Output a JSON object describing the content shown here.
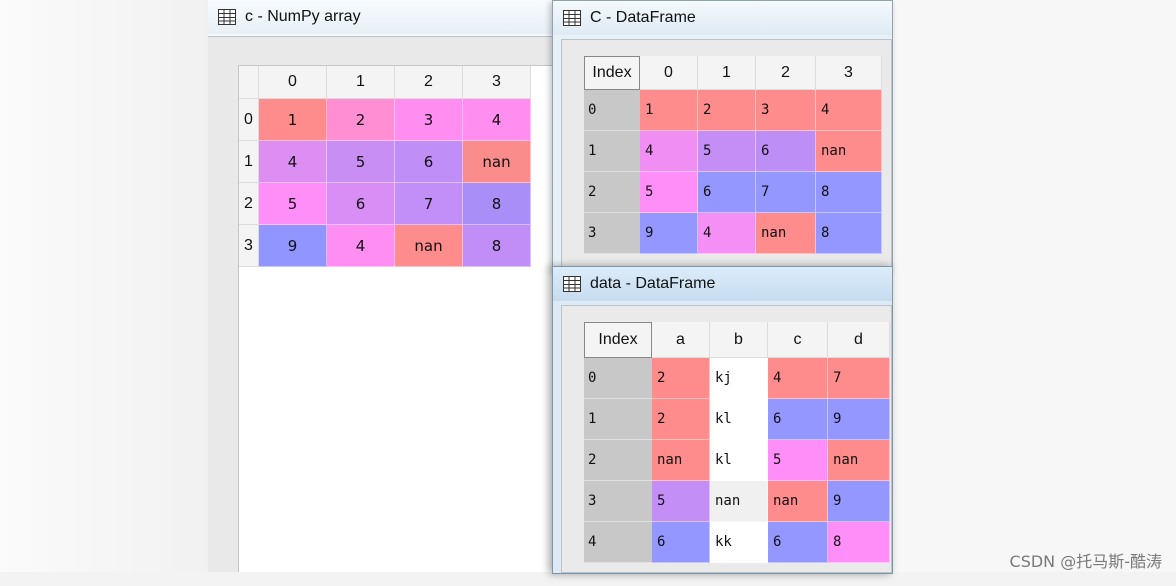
{
  "numpy_window": {
    "title": "c - NumPy array",
    "icon": "table-icon",
    "columns": [
      "0",
      "1",
      "2",
      "3"
    ],
    "row_labels": [
      "0",
      "1",
      "2",
      "3"
    ],
    "rows": [
      [
        "1",
        "2",
        "3",
        "4"
      ],
      [
        "4",
        "5",
        "6",
        "nan"
      ],
      [
        "5",
        "6",
        "7",
        "8"
      ],
      [
        "9",
        "4",
        "nan",
        "8"
      ]
    ],
    "colors": [
      [
        "#ff8c8c",
        "#ff8ed3",
        "#ff8ef0",
        "#ff8ef0"
      ],
      [
        "#dd8ef2",
        "#c98ef3",
        "#bf8ef6",
        "#fb8c8c"
      ],
      [
        "#ff8ef8",
        "#d88ef5",
        "#c28ef7",
        "#aa8ef8"
      ],
      [
        "#9195ff",
        "#ff8ef2",
        "#ff8c8c",
        "#c18ef7"
      ]
    ]
  },
  "c_window": {
    "title": "C - DataFrame",
    "icon": "table-icon",
    "index_header": "Index",
    "columns": [
      "0",
      "1",
      "2",
      "3"
    ],
    "index": [
      "0",
      "1",
      "2",
      "3"
    ],
    "rows": [
      [
        "1",
        "2",
        "3",
        "4"
      ],
      [
        "4",
        "5",
        "6",
        "nan"
      ],
      [
        "5",
        "6",
        "7",
        "8"
      ],
      [
        "9",
        "4",
        "nan",
        "8"
      ]
    ],
    "colors": [
      [
        "#ff8c8c",
        "#ff8c8c",
        "#ff8c8c",
        "#ff8c8c"
      ],
      [
        "#f08ef3",
        "#c58ef7",
        "#bd8ef5",
        "#ff8c8c"
      ],
      [
        "#ff8ef8",
        "#9497ff",
        "#9497ff",
        "#9497ff"
      ],
      [
        "#9497ff",
        "#f58ef5",
        "#ff8c8c",
        "#9497ff"
      ]
    ]
  },
  "data_window": {
    "title": "data - DataFrame",
    "icon": "table-icon",
    "index_header": "Index",
    "columns": [
      "a",
      "b",
      "c",
      "d"
    ],
    "index": [
      "0",
      "1",
      "2",
      "3",
      "4"
    ],
    "rows": [
      [
        "2",
        "kj",
        "4",
        "7"
      ],
      [
        "2",
        "kl",
        "6",
        "9"
      ],
      [
        "nan",
        "kl",
        "5",
        "nan"
      ],
      [
        "5",
        "nan",
        "nan",
        "9"
      ],
      [
        "6",
        "kk",
        "6",
        "8"
      ]
    ],
    "colors": [
      [
        "#ff8c8c",
        "#ffffff",
        "#ff8c8c",
        "#ff8c8c"
      ],
      [
        "#ff8c8c",
        "#ffffff",
        "#9497ff",
        "#9497ff"
      ],
      [
        "#ff8c8c",
        "#ffffff",
        "#ff8ef8",
        "#ff8c8c"
      ],
      [
        "#c38ef6",
        "#f0f0f0",
        "#ff8c8c",
        "#9497ff"
      ],
      [
        "#9497ff",
        "#ffffff",
        "#9497ff",
        "#ff8ef8"
      ]
    ]
  },
  "watermark": "CSDN @托马斯-酷涛"
}
